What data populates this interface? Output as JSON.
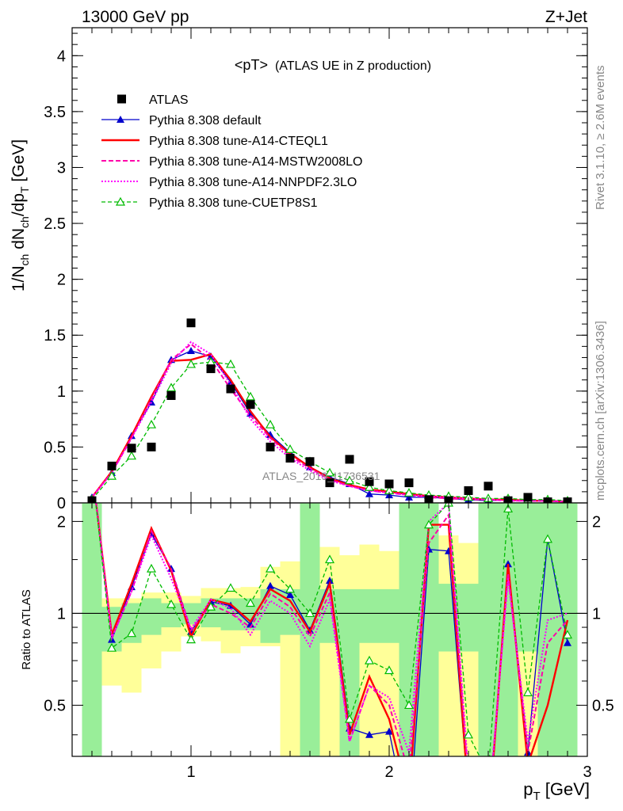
{
  "header": {
    "left": "13000 GeV pp",
    "right": "Z+Jet"
  },
  "side": {
    "rivet": "Rivet 3.1.10, ≥ 2.6M events",
    "mcplots": "mcplots.cern.ch [arXiv:1306.3436]"
  },
  "chart_data": [
    {
      "type": "line",
      "title": "<pT> (ATLAS UE in Z production)",
      "title_main": "<pT>",
      "title_sub": "(ATLAS UE in Z production)",
      "ylabel_parts": [
        "1/N",
        "ch",
        " dN",
        "ch",
        "/dp",
        "T",
        " [GeV]"
      ],
      "watermark": "ATLAS_2019_I1736531",
      "xlim": [
        0.4,
        3.0
      ],
      "ylim": [
        0,
        4.25
      ],
      "yticks": [
        0,
        0.5,
        1,
        1.5,
        2,
        2.5,
        3,
        3.5,
        4
      ],
      "ytick_labels": [
        "0",
        "0.5",
        "1",
        "1.5",
        "2",
        "2.5",
        "3",
        "3.5",
        "4"
      ],
      "x": [
        0.5,
        0.6,
        0.7,
        0.8,
        0.9,
        1.0,
        1.1,
        1.2,
        1.3,
        1.4,
        1.5,
        1.6,
        1.7,
        1.8,
        1.9,
        2.0,
        2.1,
        2.2,
        2.3,
        2.4,
        2.5,
        2.6,
        2.7,
        2.8,
        2.9
      ],
      "legend_position": "top-left",
      "series": [
        {
          "name": "ATLAS",
          "style": "data",
          "color": "#000000",
          "values": [
            0.02,
            0.33,
            0.49,
            0.5,
            0.96,
            1.61,
            1.2,
            1.02,
            0.88,
            0.5,
            0.4,
            0.37,
            0.18,
            0.39,
            0.19,
            0.17,
            0.18,
            0.03,
            0.02,
            0.11,
            0.15,
            0.02,
            0.05,
            0.01,
            0.01
          ]
        },
        {
          "name": "Pythia 8.308 default",
          "style": "solid-tri",
          "color": "#0000cc",
          "values": [
            0.05,
            0.27,
            0.6,
            0.9,
            1.28,
            1.36,
            1.31,
            1.08,
            0.8,
            0.61,
            0.45,
            0.32,
            0.23,
            0.17,
            0.08,
            0.07,
            0.05,
            0.05,
            0.04,
            0.03,
            0.02,
            0.03,
            0.02,
            0.02,
            0.01
          ]
        },
        {
          "name": "Pythia 8.308 tune-A14-CTEQL1",
          "style": "solid-thick",
          "color": "#ff0000",
          "values": [
            0.05,
            0.28,
            0.6,
            0.95,
            1.27,
            1.28,
            1.33,
            1.1,
            0.82,
            0.59,
            0.44,
            0.32,
            0.22,
            0.16,
            0.12,
            0.1,
            0.08,
            0.06,
            0.05,
            0.04,
            0.03,
            0.03,
            0.02,
            0.02,
            0.01
          ]
        },
        {
          "name": "Pythia 8.308 tune-A14-MSTW2008LO",
          "style": "dashed",
          "color": "#ff00aa",
          "values": [
            0.05,
            0.27,
            0.58,
            0.93,
            1.28,
            1.42,
            1.28,
            1.02,
            0.78,
            0.58,
            0.42,
            0.31,
            0.21,
            0.15,
            0.11,
            0.09,
            0.07,
            0.05,
            0.04,
            0.03,
            0.03,
            0.02,
            0.02,
            0.02,
            0.01
          ]
        },
        {
          "name": "Pythia 8.308 tune-A14-NNPDF2.3LO",
          "style": "dotted",
          "color": "#ff00ff",
          "values": [
            0.05,
            0.27,
            0.58,
            0.9,
            1.25,
            1.44,
            1.33,
            1.06,
            0.75,
            0.55,
            0.4,
            0.29,
            0.2,
            0.15,
            0.11,
            0.09,
            0.07,
            0.06,
            0.05,
            0.04,
            0.03,
            0.02,
            0.02,
            0.02,
            0.01
          ]
        },
        {
          "name": "Pythia 8.308 tune-CUETP8S1",
          "style": "dashed-opentri",
          "color": "#00bb00",
          "values": [
            0.03,
            0.24,
            0.42,
            0.7,
            1.03,
            1.24,
            1.26,
            1.24,
            0.95,
            0.7,
            0.48,
            0.37,
            0.27,
            0.2,
            0.14,
            0.11,
            0.09,
            0.07,
            0.06,
            0.05,
            0.04,
            0.04,
            0.03,
            0.03,
            0.02
          ]
        }
      ]
    },
    {
      "type": "line",
      "ylabel": "Ratio to ATLAS",
      "xlabel_main": "p",
      "xlabel_sub": "T",
      "xlabel_unit": " [GeV]",
      "xlim": [
        0.4,
        3.0
      ],
      "ylim": [
        0.34,
        2.3
      ],
      "xticks": [
        1,
        2,
        3
      ],
      "xtick_labels": [
        "1",
        "2",
        "3"
      ],
      "yticks": [
        0.5,
        1,
        2
      ],
      "ytick_labels": [
        "0.5",
        "1",
        "2"
      ],
      "x": [
        0.5,
        0.6,
        0.7,
        0.8,
        0.9,
        1.0,
        1.1,
        1.2,
        1.3,
        1.4,
        1.5,
        1.6,
        1.7,
        1.8,
        1.9,
        2.0,
        2.1,
        2.2,
        2.3,
        2.4,
        2.5,
        2.6,
        2.7,
        2.8,
        2.9
      ],
      "band_yellow": [
        [
          0.34,
          2.3
        ],
        [
          0.58,
          1.12
        ],
        [
          0.55,
          1.12
        ],
        [
          0.66,
          1.17
        ],
        [
          0.75,
          1.17
        ],
        [
          0.84,
          1.14
        ],
        [
          0.81,
          1.21
        ],
        [
          0.74,
          1.21
        ],
        [
          0.78,
          1.22
        ],
        [
          0.78,
          1.42
        ],
        [
          0.34,
          1.48
        ],
        [
          0.66,
          1.55
        ],
        [
          0.34,
          1.65
        ],
        [
          0.34,
          1.55
        ],
        [
          0.34,
          1.68
        ],
        [
          0.34,
          1.6
        ],
        [
          0.34,
          1.58
        ],
        [
          0.34,
          2.3
        ],
        [
          0.34,
          1.8
        ],
        [
          0.34,
          1.7
        ],
        [
          0.34,
          1.55
        ],
        [
          0.34,
          2.3
        ],
        [
          0.34,
          1.65
        ],
        [
          0.34,
          2.3
        ],
        [
          0.34,
          2.3
        ]
      ],
      "band_green": [
        [
          0.34,
          2.3
        ],
        [
          0.75,
          1.05
        ],
        [
          0.8,
          1.08
        ],
        [
          0.85,
          1.12
        ],
        [
          0.9,
          1.08
        ],
        [
          0.92,
          1.08
        ],
        [
          0.9,
          1.12
        ],
        [
          0.88,
          1.12
        ],
        [
          0.88,
          1.12
        ],
        [
          0.8,
          1.2
        ],
        [
          0.85,
          1.2
        ],
        [
          0.34,
          2.3
        ],
        [
          0.8,
          1.2
        ],
        [
          0.34,
          1.2
        ],
        [
          0.8,
          1.2
        ],
        [
          0.8,
          1.2
        ],
        [
          0.34,
          2.3
        ],
        [
          0.34,
          2.3
        ],
        [
          0.75,
          1.25
        ],
        [
          0.75,
          1.25
        ],
        [
          0.34,
          2.3
        ],
        [
          0.34,
          2.3
        ],
        [
          0.75,
          2.3
        ],
        [
          0.34,
          2.3
        ],
        [
          0.34,
          2.3
        ]
      ],
      "reference_line": 1,
      "series": [
        {
          "name": "Pythia 8.308 default",
          "style": "solid-tri",
          "color": "#0000cc",
          "values": [
            3.0,
            0.82,
            1.22,
            1.82,
            1.4,
            0.87,
            1.09,
            1.06,
            0.92,
            1.23,
            1.15,
            0.88,
            1.28,
            0.42,
            0.4,
            0.41,
            0.2,
            1.62,
            1.6,
            0.25,
            0.2,
            1.45,
            0.35,
            1.75,
            0.8
          ]
        },
        {
          "name": "Pythia 8.308 tune-A14-CTEQL1",
          "style": "solid-thick",
          "color": "#ff0000",
          "values": [
            3.0,
            0.85,
            1.25,
            1.9,
            1.38,
            0.84,
            1.11,
            1.07,
            0.94,
            1.2,
            1.1,
            0.87,
            1.25,
            0.4,
            0.62,
            0.45,
            0.25,
            1.95,
            1.95,
            0.25,
            0.2,
            1.45,
            0.32,
            0.5,
            0.95
          ]
        },
        {
          "name": "Pythia 8.308 tune-A14-MSTW2008LO",
          "style": "dashed",
          "color": "#ff00aa",
          "values": [
            3.0,
            0.83,
            1.18,
            1.86,
            1.4,
            0.88,
            1.07,
            1.0,
            0.9,
            1.16,
            1.05,
            0.84,
            1.17,
            0.38,
            0.58,
            0.5,
            0.3,
            1.7,
            2.1,
            0.28,
            0.22,
            1.35,
            0.35,
            0.8,
            0.95
          ]
        },
        {
          "name": "Pythia 8.308 tune-A14-NNPDF2.3LO",
          "style": "dotted",
          "color": "#ff00ff",
          "values": [
            3.0,
            0.83,
            1.18,
            1.8,
            1.3,
            0.89,
            1.11,
            1.04,
            0.85,
            1.1,
            1.0,
            0.78,
            1.11,
            0.38,
            0.58,
            0.53,
            0.35,
            2.0,
            2.3,
            0.3,
            0.22,
            1.3,
            0.38,
            0.95,
            1.0
          ]
        },
        {
          "name": "Pythia 8.308 tune-CUETP8S1",
          "style": "dashed-opentri",
          "color": "#00bb00",
          "values": [
            3.0,
            0.77,
            0.86,
            1.4,
            1.07,
            0.82,
            1.05,
            1.21,
            1.08,
            1.4,
            1.2,
            1.0,
            1.5,
            0.45,
            0.7,
            0.65,
            0.5,
            1.95,
            2.3,
            0.4,
            0.3,
            2.2,
            0.55,
            1.75,
            0.85
          ]
        }
      ]
    }
  ]
}
